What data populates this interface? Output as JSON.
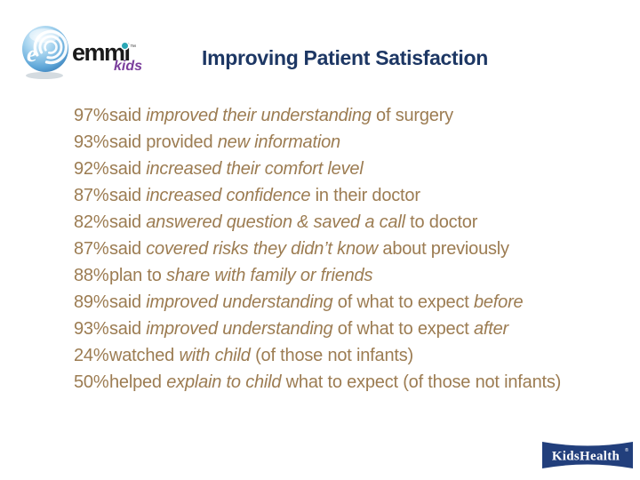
{
  "title": {
    "text": "Improving Patient Satisfaction"
  },
  "brand_logo": {
    "word": "emmi",
    "trademark": "™",
    "sub_word": "kids",
    "sphere_letter": "e"
  },
  "stats": [
    {
      "pct": "97%",
      "segments": [
        {
          "text": "said ",
          "italic": false
        },
        {
          "text": "improved their understanding",
          "italic": true
        },
        {
          "text": " of surgery",
          "italic": false
        }
      ]
    },
    {
      "pct": "93%",
      "segments": [
        {
          "text": "said provided ",
          "italic": false
        },
        {
          "text": "new information",
          "italic": true
        }
      ]
    },
    {
      "pct": "92%",
      "segments": [
        {
          "text": "said ",
          "italic": false
        },
        {
          "text": "increased their comfort level",
          "italic": true
        }
      ]
    },
    {
      "pct": "87%",
      "segments": [
        {
          "text": "said ",
          "italic": false
        },
        {
          "text": "increased confidence",
          "italic": true
        },
        {
          "text": " in their doctor",
          "italic": false
        }
      ]
    },
    {
      "pct": "82%",
      "segments": [
        {
          "text": "said ",
          "italic": false
        },
        {
          "text": "answered question & saved a call",
          "italic": true
        },
        {
          "text": " to doctor",
          "italic": false
        }
      ]
    },
    {
      "pct": "87%",
      "segments": [
        {
          "text": "said ",
          "italic": false
        },
        {
          "text": "covered risks they didn’t know",
          "italic": true
        },
        {
          "text": " about previously",
          "italic": false
        }
      ]
    },
    {
      "pct": "88%",
      "segments": [
        {
          "text": "plan to ",
          "italic": false
        },
        {
          "text": "share with family or friends",
          "italic": true
        }
      ]
    },
    {
      "pct": "89%",
      "segments": [
        {
          "text": "said ",
          "italic": false
        },
        {
          "text": "improved understanding",
          "italic": true
        },
        {
          "text": " of what to expect ",
          "italic": false
        },
        {
          "text": "before",
          "italic": true
        }
      ]
    },
    {
      "pct": "93%",
      "segments": [
        {
          "text": "said ",
          "italic": false
        },
        {
          "text": "improved understanding",
          "italic": true
        },
        {
          "text": " of what to expect ",
          "italic": false
        },
        {
          "text": "after",
          "italic": true
        }
      ]
    },
    {
      "pct": "24%",
      "segments": [
        {
          "text": "watched ",
          "italic": false
        },
        {
          "text": "with child",
          "italic": true
        },
        {
          "text": " (of those not infants)",
          "italic": false
        }
      ]
    },
    {
      "pct": "50%",
      "segments": [
        {
          "text": "helped ",
          "italic": false
        },
        {
          "text": "explain to child",
          "italic": true
        },
        {
          "text": " what to expect (of those not infants)",
          "italic": false
        }
      ]
    }
  ],
  "footer_logo": {
    "word": "KidsHealth",
    "registered": "®"
  },
  "colors": {
    "title_navy": "#1d3764",
    "body_tan": "#9c7c52",
    "logo_black": "#1a1a1a",
    "logo_purple": "#7b3f9c",
    "logo_teal": "#2ba7b5",
    "ribbon_navy": "#223f7c",
    "sphere_blue_dark": "#3c7fb8",
    "sphere_blue_light": "#cfe9f7"
  }
}
